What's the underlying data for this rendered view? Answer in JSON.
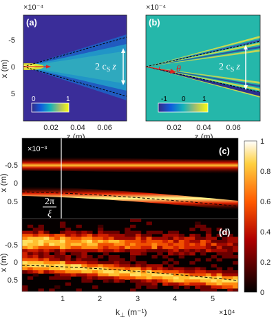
{
  "panels": {
    "a": {
      "label": "(a)",
      "x_exponent": "×10⁻⁴",
      "xlabel": "z (m)",
      "ylabel": "x (m)",
      "xticks": [
        "0.02",
        "0.04",
        "0.06"
      ],
      "yticks": [
        "-5",
        "0",
        "5"
      ],
      "annotation": "2 c",
      "annotation_sub": "S",
      "annotation_z": "z",
      "colorbar": {
        "min": "0",
        "max": "1"
      }
    },
    "b": {
      "label": "(b)",
      "x_exponent": "×10⁻⁴",
      "xlabel": "z (m)",
      "xticks": [
        "0.02",
        "0.04",
        "0.06"
      ],
      "annotation": "2 c",
      "annotation_sub": "S",
      "annotation_z": "z",
      "theta": "θ",
      "colorbar": {
        "min": "-1",
        "max": "1",
        "mid": "0"
      }
    },
    "c": {
      "label": "(c)",
      "exponent": "×10⁻³",
      "ylabel": "x (m)",
      "yticks": [
        "-0.5",
        "0",
        "0.5"
      ],
      "kline_num": "2π",
      "kline_den": "ξ"
    },
    "d": {
      "label": "(d)",
      "ylabel": "x (m)",
      "yticks": [
        "-0.5",
        "0",
        "0.5"
      ],
      "xlabel": "k",
      "xlabel_sub": "⊥",
      "xlabel_unit": " (m⁻¹)",
      "x_exponent": "×10⁴",
      "xticks": [
        "1",
        "2",
        "3",
        "4",
        "5"
      ]
    },
    "colorbar_main": {
      "ticks": [
        "0",
        "0.2",
        "0.4",
        "0.6",
        "0.8",
        "1"
      ]
    }
  },
  "chart_data": [
    {
      "type": "heatmap",
      "panel": "a",
      "xlabel": "z (m)",
      "ylabel": "x (m)",
      "xlim": [
        0,
        0.077
      ],
      "ylim": [
        -8.5,
        8.5
      ],
      "y_scale_factor": "1e-4",
      "colorbar_range": [
        0,
        1
      ],
      "cone_slope_per_m": 42
    },
    {
      "type": "heatmap",
      "panel": "b",
      "xlabel": "z (m)",
      "xlim": [
        0,
        0.077
      ],
      "ylim": [
        -8.5,
        8.5
      ],
      "colorbar_range": [
        -1,
        1
      ],
      "cone_slope_per_m": 42
    },
    {
      "type": "heatmap",
      "panel": "c",
      "ylabel": "x (m)",
      "xlim": [
        0,
        5.6
      ],
      "ylim": [
        -0.9,
        0.9
      ],
      "y_scale_factor": "1e-3",
      "colorbar_range": [
        0,
        1
      ],
      "colorbar_ticks": [
        0,
        0.2,
        0.4,
        0.6,
        0.8,
        1
      ],
      "vertical_line_k": 1.05,
      "dashed_fit": {
        "x": [
          0,
          1,
          2,
          3,
          4,
          5,
          5.6
        ],
        "y": [
          0.3,
          0.35,
          0.43,
          0.5,
          0.58,
          0.66,
          0.7
        ]
      }
    },
    {
      "type": "heatmap",
      "panel": "d",
      "ylabel": "x (m)",
      "xlim": [
        0,
        5.6
      ],
      "ylim": [
        -0.9,
        0.9
      ],
      "dashed_fit": {
        "x": [
          0,
          1,
          2,
          3,
          4,
          5,
          5.6
        ],
        "y": [
          0.3,
          0.35,
          0.43,
          0.5,
          0.58,
          0.66,
          0.7
        ]
      }
    }
  ]
}
